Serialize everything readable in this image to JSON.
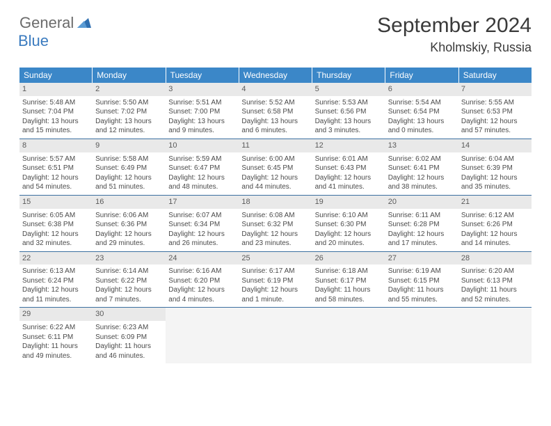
{
  "logo": {
    "word1": "General",
    "word2": "Blue"
  },
  "title": "September 2024",
  "location": "Kholmskiy, Russia",
  "day_headers": [
    "Sunday",
    "Monday",
    "Tuesday",
    "Wednesday",
    "Thursday",
    "Friday",
    "Saturday"
  ],
  "colors": {
    "header_bg": "#3b87c8",
    "daynum_bg": "#e9e9e9",
    "rule": "#3b6fa0",
    "logo_blue": "#3b7bbf"
  },
  "weeks": [
    [
      {
        "n": "1",
        "sr": "Sunrise: 5:48 AM",
        "ss": "Sunset: 7:04 PM",
        "d1": "Daylight: 13 hours",
        "d2": "and 15 minutes."
      },
      {
        "n": "2",
        "sr": "Sunrise: 5:50 AM",
        "ss": "Sunset: 7:02 PM",
        "d1": "Daylight: 13 hours",
        "d2": "and 12 minutes."
      },
      {
        "n": "3",
        "sr": "Sunrise: 5:51 AM",
        "ss": "Sunset: 7:00 PM",
        "d1": "Daylight: 13 hours",
        "d2": "and 9 minutes."
      },
      {
        "n": "4",
        "sr": "Sunrise: 5:52 AM",
        "ss": "Sunset: 6:58 PM",
        "d1": "Daylight: 13 hours",
        "d2": "and 6 minutes."
      },
      {
        "n": "5",
        "sr": "Sunrise: 5:53 AM",
        "ss": "Sunset: 6:56 PM",
        "d1": "Daylight: 13 hours",
        "d2": "and 3 minutes."
      },
      {
        "n": "6",
        "sr": "Sunrise: 5:54 AM",
        "ss": "Sunset: 6:54 PM",
        "d1": "Daylight: 13 hours",
        "d2": "and 0 minutes."
      },
      {
        "n": "7",
        "sr": "Sunrise: 5:55 AM",
        "ss": "Sunset: 6:53 PM",
        "d1": "Daylight: 12 hours",
        "d2": "and 57 minutes."
      }
    ],
    [
      {
        "n": "8",
        "sr": "Sunrise: 5:57 AM",
        "ss": "Sunset: 6:51 PM",
        "d1": "Daylight: 12 hours",
        "d2": "and 54 minutes."
      },
      {
        "n": "9",
        "sr": "Sunrise: 5:58 AM",
        "ss": "Sunset: 6:49 PM",
        "d1": "Daylight: 12 hours",
        "d2": "and 51 minutes."
      },
      {
        "n": "10",
        "sr": "Sunrise: 5:59 AM",
        "ss": "Sunset: 6:47 PM",
        "d1": "Daylight: 12 hours",
        "d2": "and 48 minutes."
      },
      {
        "n": "11",
        "sr": "Sunrise: 6:00 AM",
        "ss": "Sunset: 6:45 PM",
        "d1": "Daylight: 12 hours",
        "d2": "and 44 minutes."
      },
      {
        "n": "12",
        "sr": "Sunrise: 6:01 AM",
        "ss": "Sunset: 6:43 PM",
        "d1": "Daylight: 12 hours",
        "d2": "and 41 minutes."
      },
      {
        "n": "13",
        "sr": "Sunrise: 6:02 AM",
        "ss": "Sunset: 6:41 PM",
        "d1": "Daylight: 12 hours",
        "d2": "and 38 minutes."
      },
      {
        "n": "14",
        "sr": "Sunrise: 6:04 AM",
        "ss": "Sunset: 6:39 PM",
        "d1": "Daylight: 12 hours",
        "d2": "and 35 minutes."
      }
    ],
    [
      {
        "n": "15",
        "sr": "Sunrise: 6:05 AM",
        "ss": "Sunset: 6:38 PM",
        "d1": "Daylight: 12 hours",
        "d2": "and 32 minutes."
      },
      {
        "n": "16",
        "sr": "Sunrise: 6:06 AM",
        "ss": "Sunset: 6:36 PM",
        "d1": "Daylight: 12 hours",
        "d2": "and 29 minutes."
      },
      {
        "n": "17",
        "sr": "Sunrise: 6:07 AM",
        "ss": "Sunset: 6:34 PM",
        "d1": "Daylight: 12 hours",
        "d2": "and 26 minutes."
      },
      {
        "n": "18",
        "sr": "Sunrise: 6:08 AM",
        "ss": "Sunset: 6:32 PM",
        "d1": "Daylight: 12 hours",
        "d2": "and 23 minutes."
      },
      {
        "n": "19",
        "sr": "Sunrise: 6:10 AM",
        "ss": "Sunset: 6:30 PM",
        "d1": "Daylight: 12 hours",
        "d2": "and 20 minutes."
      },
      {
        "n": "20",
        "sr": "Sunrise: 6:11 AM",
        "ss": "Sunset: 6:28 PM",
        "d1": "Daylight: 12 hours",
        "d2": "and 17 minutes."
      },
      {
        "n": "21",
        "sr": "Sunrise: 6:12 AM",
        "ss": "Sunset: 6:26 PM",
        "d1": "Daylight: 12 hours",
        "d2": "and 14 minutes."
      }
    ],
    [
      {
        "n": "22",
        "sr": "Sunrise: 6:13 AM",
        "ss": "Sunset: 6:24 PM",
        "d1": "Daylight: 12 hours",
        "d2": "and 11 minutes."
      },
      {
        "n": "23",
        "sr": "Sunrise: 6:14 AM",
        "ss": "Sunset: 6:22 PM",
        "d1": "Daylight: 12 hours",
        "d2": "and 7 minutes."
      },
      {
        "n": "24",
        "sr": "Sunrise: 6:16 AM",
        "ss": "Sunset: 6:20 PM",
        "d1": "Daylight: 12 hours",
        "d2": "and 4 minutes."
      },
      {
        "n": "25",
        "sr": "Sunrise: 6:17 AM",
        "ss": "Sunset: 6:19 PM",
        "d1": "Daylight: 12 hours",
        "d2": "and 1 minute."
      },
      {
        "n": "26",
        "sr": "Sunrise: 6:18 AM",
        "ss": "Sunset: 6:17 PM",
        "d1": "Daylight: 11 hours",
        "d2": "and 58 minutes."
      },
      {
        "n": "27",
        "sr": "Sunrise: 6:19 AM",
        "ss": "Sunset: 6:15 PM",
        "d1": "Daylight: 11 hours",
        "d2": "and 55 minutes."
      },
      {
        "n": "28",
        "sr": "Sunrise: 6:20 AM",
        "ss": "Sunset: 6:13 PM",
        "d1": "Daylight: 11 hours",
        "d2": "and 52 minutes."
      }
    ],
    [
      {
        "n": "29",
        "sr": "Sunrise: 6:22 AM",
        "ss": "Sunset: 6:11 PM",
        "d1": "Daylight: 11 hours",
        "d2": "and 49 minutes."
      },
      {
        "n": "30",
        "sr": "Sunrise: 6:23 AM",
        "ss": "Sunset: 6:09 PM",
        "d1": "Daylight: 11 hours",
        "d2": "and 46 minutes."
      },
      {
        "empty": true
      },
      {
        "empty": true
      },
      {
        "empty": true
      },
      {
        "empty": true
      },
      {
        "empty": true
      }
    ]
  ]
}
